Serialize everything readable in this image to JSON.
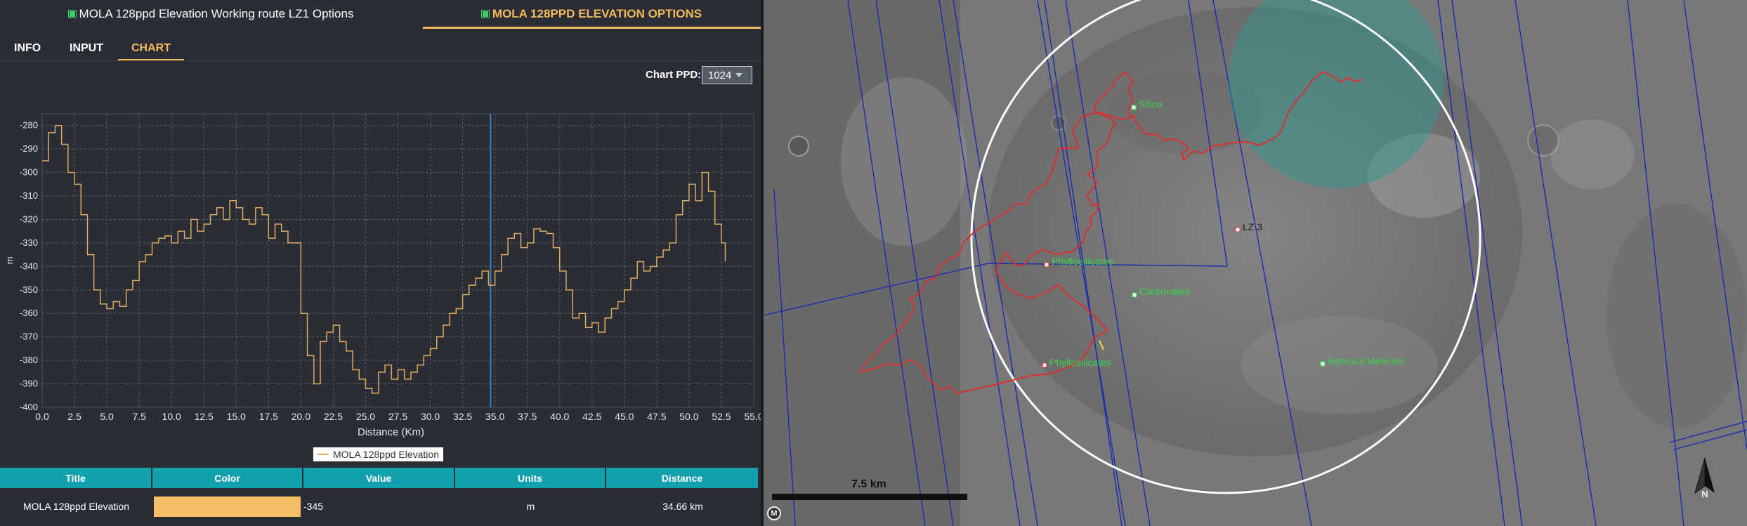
{
  "panel": {
    "tabs": [
      {
        "label": "MOLA 128ppd Elevation Working route LZ1 Options",
        "active": false
      },
      {
        "label": "MOLA 128PPD ELEVATION OPTIONS",
        "active": true
      }
    ],
    "subtabs": [
      {
        "label": "INFO"
      },
      {
        "label": "INPUT"
      },
      {
        "label": "CHART",
        "active": true
      }
    ],
    "chart_ppd": {
      "label": "Chart PPD:",
      "value": "1024"
    }
  },
  "chart_data": {
    "type": "line",
    "xlabel": "Distance (Km)",
    "ylabel": "m",
    "xlim": [
      0,
      55
    ],
    "ylim": [
      -400,
      -275
    ],
    "x_ticks": [
      "0.0",
      "2.5",
      "5.0",
      "7.5",
      "10.0",
      "12.5",
      "15.0",
      "17.5",
      "20.0",
      "22.5",
      "25.0",
      "27.5",
      "30.0",
      "32.5",
      "35.0",
      "37.5",
      "40.0",
      "42.5",
      "45.0",
      "47.5",
      "50.0",
      "52.5",
      "55.0"
    ],
    "y_ticks": [
      "-280",
      "-290",
      "-300",
      "-310",
      "-320",
      "-330",
      "-340",
      "-350",
      "-360",
      "-370",
      "-380",
      "-390",
      "-400"
    ],
    "grid": true,
    "legend": "bottom-center",
    "cursor_x": 34.66,
    "series": [
      {
        "name": "MOLA 128ppd Elevation",
        "color": "#e0a85a",
        "x": [
          0,
          0.5,
          1,
          1.5,
          2,
          2.5,
          3,
          3.5,
          4,
          4.5,
          5,
          5.5,
          6,
          6.5,
          7,
          7.5,
          8,
          8.5,
          9,
          9.5,
          10,
          10.5,
          11,
          11.5,
          12,
          12.5,
          13,
          13.5,
          14,
          14.5,
          15,
          15.5,
          16,
          16.5,
          17,
          17.5,
          18,
          18.5,
          19,
          19.5,
          20,
          20.5,
          21,
          21.5,
          22,
          22.5,
          23,
          23.5,
          24,
          24.5,
          25,
          25.5,
          26,
          26.5,
          27,
          27.5,
          28,
          28.5,
          29,
          29.5,
          30,
          30.5,
          31,
          31.5,
          32,
          32.5,
          33,
          33.5,
          34,
          34.5,
          35,
          35.5,
          36,
          36.5,
          37,
          37.5,
          38,
          38.5,
          39,
          39.5,
          40,
          40.5,
          41,
          41.5,
          42,
          42.5,
          43,
          43.5,
          44,
          44.5,
          45,
          45.5,
          46,
          46.5,
          47,
          47.5,
          48,
          48.5,
          49,
          49.5,
          50,
          50.5,
          51,
          51.5,
          52,
          52.5,
          52.8
        ],
        "y": [
          -295,
          -283,
          -280,
          -288,
          -300,
          -305,
          -318,
          -335,
          -350,
          -356,
          -358,
          -355,
          -357,
          -350,
          -346,
          -338,
          -335,
          -330,
          -328,
          -327,
          -330,
          -325,
          -328,
          -320,
          -325,
          -322,
          -318,
          -315,
          -320,
          -312,
          -315,
          -320,
          -322,
          -315,
          -318,
          -328,
          -322,
          -325,
          -330,
          -330,
          -360,
          -378,
          -390,
          -372,
          -368,
          -365,
          -372,
          -376,
          -384,
          -388,
          -392,
          -394,
          -385,
          -382,
          -388,
          -384,
          -388,
          -385,
          -382,
          -378,
          -375,
          -370,
          -365,
          -360,
          -358,
          -352,
          -348,
          -345,
          -342,
          -348,
          -342,
          -335,
          -328,
          -326,
          -332,
          -330,
          -324,
          -325,
          -326,
          -332,
          -342,
          -350,
          -362,
          -360,
          -366,
          -364,
          -368,
          -362,
          -358,
          -355,
          -350,
          -345,
          -338,
          -342,
          -340,
          -336,
          -333,
          -330,
          -318,
          -312,
          -305,
          -312,
          -300,
          -308,
          -322,
          -330,
          -338
        ]
      }
    ]
  },
  "data_table": {
    "headers": [
      "Title",
      "Color",
      "Value",
      "Units",
      "Distance"
    ],
    "rows": [
      {
        "title": "MOLA 128ppd Elevation",
        "color": "#f5bd66",
        "value": "-345",
        "units": "m",
        "distance": "34.66 km"
      }
    ]
  },
  "map": {
    "labels": {
      "silica": "Silica",
      "lz3": "LZ 3",
      "phyllosilicates_upper": "Phyllosilicates",
      "carbonates": "Carbonates",
      "phyllosilicates_lower": "Phyllosilicates",
      "hydrous_minerals": "Hydrous Minerals"
    },
    "scale_label": "7.5 km",
    "m_button": "M",
    "north_label": "N",
    "colors": {
      "route": "#d93030",
      "footprints": "#1a2bb0",
      "circle": "#ffffff",
      "zone": "#2a9b94",
      "label": "#39d24a"
    }
  }
}
